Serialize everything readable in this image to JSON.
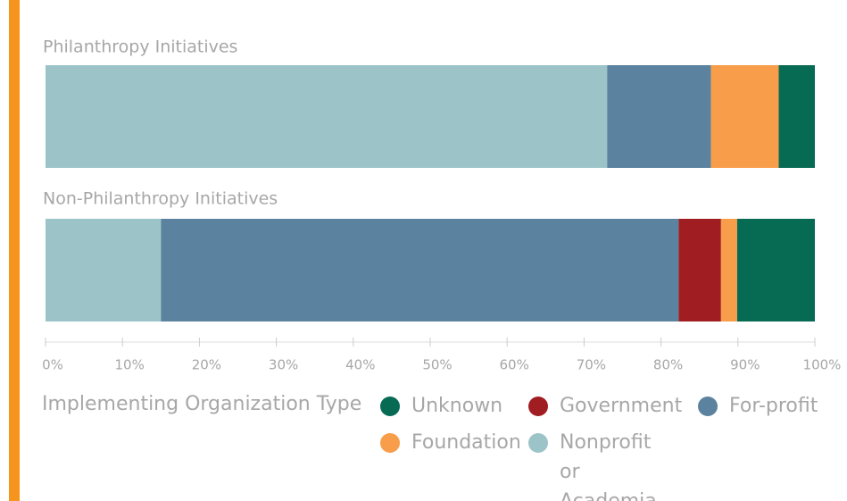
{
  "chart_data": {
    "type": "stacked_barh",
    "categories": [
      "Philanthropy Initiatives",
      "Non-Philanthropy Initiatives"
    ],
    "series": [
      {
        "name": "Nonprofit or Academia",
        "color": "#9cc4c8",
        "values": [
          73,
          15
        ]
      },
      {
        "name": "For-profit",
        "color": "#5b829e",
        "values": [
          13.5,
          67.3
        ]
      },
      {
        "name": "Government",
        "color": "#a01d22",
        "values": [
          0,
          5.5
        ]
      },
      {
        "name": "Foundation",
        "color": "#f89d4a",
        "values": [
          8.8,
          2.1
        ]
      },
      {
        "name": "Unknown",
        "color": "#076b54",
        "values": [
          4.7,
          10.1
        ]
      }
    ],
    "legend_title": "Implementing Organization Type",
    "xlim": [
      0,
      100
    ],
    "xticks": [
      {
        "value": 0,
        "label": "0%"
      },
      {
        "value": 10,
        "label": "10%"
      },
      {
        "value": 20,
        "label": "20%"
      },
      {
        "value": 30,
        "label": "30%"
      },
      {
        "value": 40,
        "label": "40%"
      },
      {
        "value": 50,
        "label": "50%"
      },
      {
        "value": 60,
        "label": "60%"
      },
      {
        "value": 70,
        "label": "70%"
      },
      {
        "value": 80,
        "label": "80%"
      },
      {
        "value": 90,
        "label": "90%"
      },
      {
        "value": 100,
        "label": "100%"
      }
    ]
  }
}
